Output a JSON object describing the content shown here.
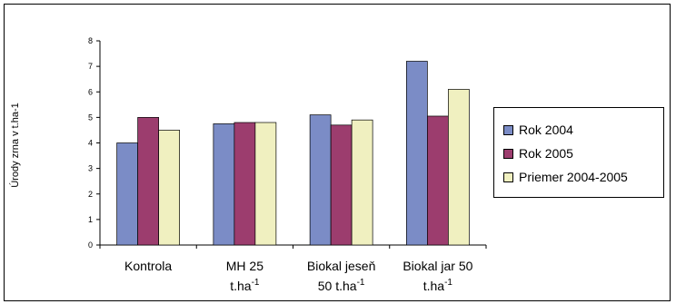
{
  "chart_data": {
    "type": "bar",
    "title": "",
    "ylabel": "Úrody zrna v t.ha-1",
    "xlabel": "",
    "ylim": [
      0,
      8
    ],
    "yticks": [
      "0",
      "1",
      "2",
      "3",
      "4",
      "5",
      "6",
      "7",
      "8"
    ],
    "grid": false,
    "legend_position": "right",
    "categories": [
      {
        "line1": "Kontrola",
        "line2_base": "",
        "line2_sup": ""
      },
      {
        "line1": "MH 25",
        "line2_base": "t.ha",
        "line2_sup": "-1"
      },
      {
        "line1": "Biokal jeseň",
        "line2_base": "50 t.ha",
        "line2_sup": "-1"
      },
      {
        "line1": "Biokal jar 50",
        "line2_base": "t.ha",
        "line2_sup": "-1"
      }
    ],
    "series": [
      {
        "name": "Rok 2004",
        "color": "#7b8cc6",
        "values": [
          4.0,
          4.75,
          5.1,
          7.2
        ]
      },
      {
        "name": "Rok 2005",
        "color": "#9c3d6e",
        "values": [
          5.0,
          4.8,
          4.7,
          5.05
        ]
      },
      {
        "name": "Priemer 2004-2005",
        "color": "#f0f0c0",
        "values": [
          4.5,
          4.8,
          4.9,
          6.1
        ]
      }
    ]
  }
}
